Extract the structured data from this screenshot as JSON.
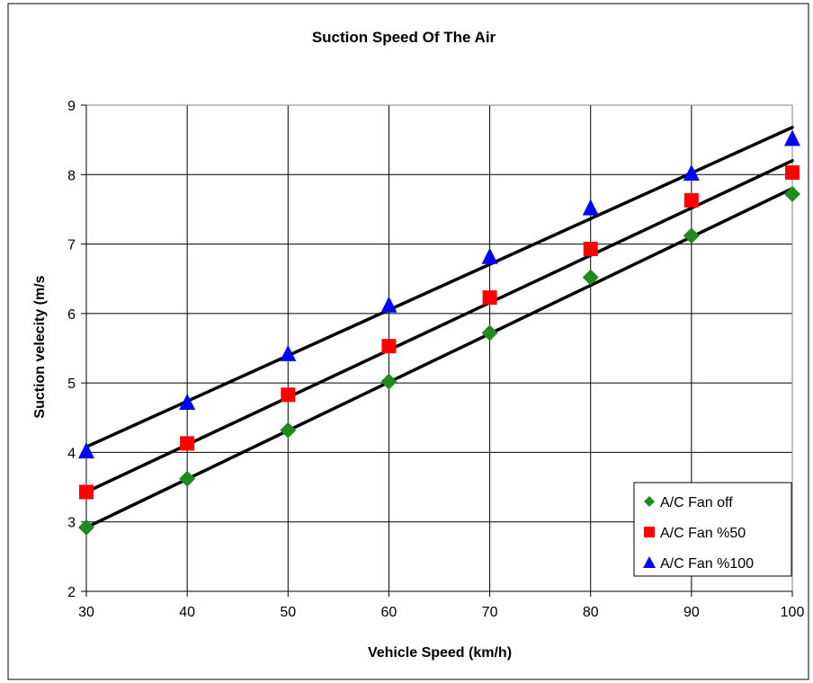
{
  "chart_data": {
    "type": "scatter",
    "title": "Suction Speed Of The Air",
    "xlabel": "Vehicle Speed (km/h)",
    "ylabel": "Suction velecity (m/s",
    "xlim": [
      30,
      100
    ],
    "ylim": [
      2,
      9
    ],
    "xticks": [
      "30",
      "40",
      "50",
      "60",
      "70",
      "80",
      "90",
      "100"
    ],
    "yticks": [
      "2",
      "3",
      "4",
      "5",
      "6",
      "7",
      "8",
      "9"
    ],
    "grid": true,
    "legend_position": "bottom-right",
    "x": [
      30,
      40,
      50,
      60,
      70,
      80,
      90,
      100
    ],
    "series": [
      {
        "name": "A/C Fan off",
        "marker": "diamond",
        "color": "#1f8a1f",
        "values": [
          2.92,
          3.62,
          4.32,
          5.02,
          5.72,
          6.52,
          7.12,
          7.72
        ],
        "trendline": [
          2.92,
          7.8
        ]
      },
      {
        "name": "A/C Fan %50",
        "marker": "square",
        "color": "#ff0000",
        "values": [
          3.43,
          4.13,
          4.83,
          5.53,
          6.23,
          6.93,
          7.63,
          8.03
        ],
        "trendline": [
          3.43,
          8.2
        ]
      },
      {
        "name": "A/C Fan %100",
        "marker": "triangle",
        "color": "#0000ff",
        "values": [
          4.03,
          4.73,
          5.43,
          6.13,
          6.83,
          7.53,
          8.03,
          8.53
        ],
        "trendline": [
          4.08,
          8.68
        ]
      }
    ]
  }
}
